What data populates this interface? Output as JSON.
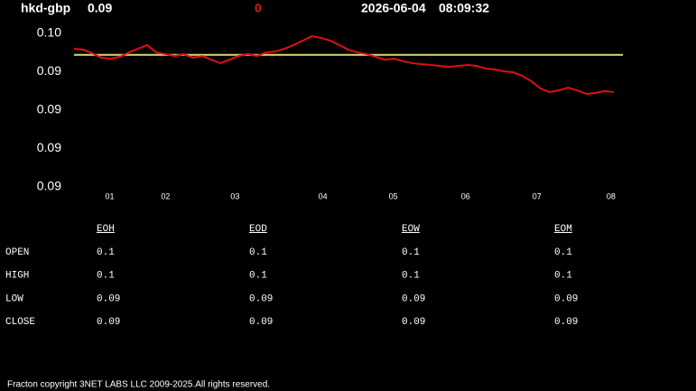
{
  "header": {
    "symbol": "hkd-gbp",
    "price": "0.09",
    "change": "0",
    "date": "2026-06-04",
    "time": "08:09:32"
  },
  "chart_data": {
    "type": "line",
    "x": [
      0,
      1,
      2,
      3,
      4,
      5,
      6,
      7,
      8,
      9,
      10,
      11,
      12,
      13,
      14,
      15,
      16,
      17,
      18,
      19,
      20,
      21,
      22,
      23,
      24,
      25,
      26,
      27,
      28,
      29,
      30,
      31,
      32,
      33,
      34,
      35,
      36,
      37,
      38,
      39,
      40,
      41,
      42,
      43,
      44,
      45,
      46,
      47,
      48,
      49,
      50,
      51,
      52,
      53,
      54,
      55,
      56,
      57,
      58,
      59
    ],
    "series": [
      {
        "name": "hkd-gbp",
        "color": "#e01010",
        "values": [
          0.0949,
          0.094894,
          0.094871,
          0.094841,
          0.094835,
          0.094847,
          0.094876,
          0.0949,
          0.094924,
          0.094876,
          0.094865,
          0.094853,
          0.094865,
          0.094841,
          0.094853,
          0.094829,
          0.094806,
          0.094829,
          0.094853,
          0.094865,
          0.094853,
          0.094876,
          0.094882,
          0.0949,
          0.094924,
          0.094953,
          0.094982,
          0.094971,
          0.094953,
          0.094924,
          0.094894,
          0.094876,
          0.094865,
          0.094847,
          0.094829,
          0.094835,
          0.094818,
          0.094806,
          0.0948,
          0.094794,
          0.094788,
          0.094782,
          0.094788,
          0.094794,
          0.094788,
          0.094771,
          0.094765,
          0.094753,
          0.094747,
          0.094724,
          0.094688,
          0.094641,
          0.094618,
          0.094629,
          0.094647,
          0.094629,
          0.094606,
          0.094612,
          0.094624,
          0.094618
        ]
      }
    ],
    "reference_line": {
      "value": 0.09486,
      "color": "#d8d878"
    },
    "xlim": [
      0,
      60
    ],
    "xticks": [
      {
        "value": 3.9,
        "label": "01"
      },
      {
        "value": 10,
        "label": "02"
      },
      {
        "value": 17.6,
        "label": "03"
      },
      {
        "value": 27.2,
        "label": "04"
      },
      {
        "value": 34.9,
        "label": "05"
      },
      {
        "value": 42.8,
        "label": "06"
      },
      {
        "value": 50.6,
        "label": "07"
      },
      {
        "value": 58.7,
        "label": "08"
      }
    ],
    "ylim": [
      0.094,
      0.095
    ],
    "yticks": [
      {
        "value": 0.095,
        "label": "0.10"
      },
      {
        "value": 0.09475,
        "label": "0.09"
      },
      {
        "value": 0.0945,
        "label": "0.09"
      },
      {
        "value": 0.09425,
        "label": "0.09"
      },
      {
        "value": 0.094,
        "label": "0.09"
      }
    ]
  },
  "table": {
    "columns": [
      "EOH",
      "EOD",
      "EOW",
      "EOM"
    ],
    "rows": [
      {
        "label": "OPEN",
        "cells": [
          "0.1",
          "0.1",
          "0.1",
          "0.1"
        ]
      },
      {
        "label": "HIGH",
        "cells": [
          "0.1",
          "0.1",
          "0.1",
          "0.1"
        ]
      },
      {
        "label": "LOW",
        "cells": [
          "0.09",
          "0.09",
          "0.09",
          "0.09"
        ]
      },
      {
        "label": "CLOSE",
        "cells": [
          "0.09",
          "0.09",
          "0.09",
          "0.09"
        ]
      }
    ]
  },
  "footer": "Fracton copyright 3NET LABS LLC 2009-2025.All rights reserved."
}
